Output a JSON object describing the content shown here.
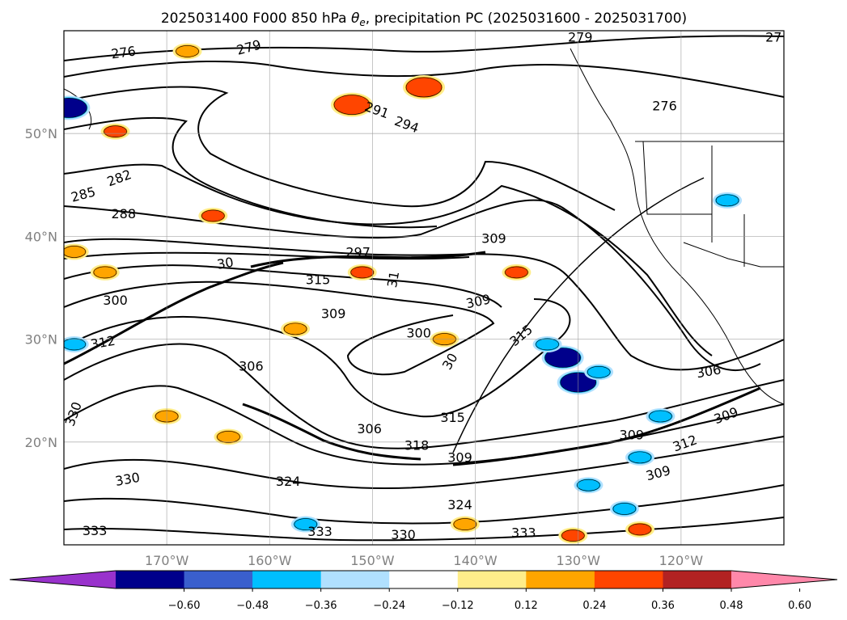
{
  "chart_data": {
    "type": "map-contour",
    "title_prefix": "2025031400 F000 850 hPa ",
    "title_symbol": "θ",
    "title_subscript": "e",
    "title_suffix": ", precipitation PC (2025031600 - 2025031700)",
    "lon_range": [
      -180,
      -110
    ],
    "lat_range": [
      10,
      60
    ],
    "lat_ticks": [
      {
        "value": 20,
        "label": "20°N"
      },
      {
        "value": 30,
        "label": "30°N"
      },
      {
        "value": 40,
        "label": "40°N"
      },
      {
        "value": 50,
        "label": "50°N"
      }
    ],
    "lon_ticks": [
      {
        "value": -170,
        "label": "170°W"
      },
      {
        "value": -160,
        "label": "160°W"
      },
      {
        "value": -150,
        "label": "150°W"
      },
      {
        "value": -140,
        "label": "140°W"
      },
      {
        "value": -130,
        "label": "130°W"
      },
      {
        "value": -120,
        "label": "120°W"
      }
    ],
    "grid": true,
    "contour_labels": [
      {
        "text": "276",
        "lon": -174.2,
        "lat": 57.8,
        "angle": -8
      },
      {
        "text": "279",
        "lon": -162.0,
        "lat": 58.3,
        "angle": -15
      },
      {
        "text": "279",
        "lon": -129.8,
        "lat": 59.3,
        "angle": 0
      },
      {
        "text": "276",
        "lon": -121.6,
        "lat": 52.6,
        "angle": 0
      },
      {
        "text": "27",
        "lon": -111.0,
        "lat": 59.3,
        "angle": 0
      },
      {
        "text": "291",
        "lon": -149.6,
        "lat": 52.2,
        "angle": 20
      },
      {
        "text": "294",
        "lon": -146.7,
        "lat": 50.8,
        "angle": 20
      },
      {
        "text": "282",
        "lon": -174.6,
        "lat": 45.6,
        "angle": -20
      },
      {
        "text": "285",
        "lon": -178.1,
        "lat": 44.0,
        "angle": -15
      },
      {
        "text": "288",
        "lon": -174.2,
        "lat": 42.1,
        "angle": 0
      },
      {
        "text": "297",
        "lon": -151.4,
        "lat": 38.4,
        "angle": 0
      },
      {
        "text": "309",
        "lon": -138.2,
        "lat": 39.7,
        "angle": 0
      },
      {
        "text": "30",
        "lon": -164.3,
        "lat": 37.3,
        "angle": -10
      },
      {
        "text": "315",
        "lon": -155.3,
        "lat": 35.7,
        "angle": 0
      },
      {
        "text": "31",
        "lon": -147.9,
        "lat": 35.8,
        "angle": -80
      },
      {
        "text": "300",
        "lon": -175.0,
        "lat": 33.7,
        "angle": 0
      },
      {
        "text": "309",
        "lon": -139.7,
        "lat": 33.6,
        "angle": -12
      },
      {
        "text": "309",
        "lon": -153.8,
        "lat": 32.4,
        "angle": 0
      },
      {
        "text": "300",
        "lon": -145.5,
        "lat": 30.5,
        "angle": 0
      },
      {
        "text": "315",
        "lon": -135.5,
        "lat": 30.3,
        "angle": -40
      },
      {
        "text": "312",
        "lon": -176.2,
        "lat": 29.6,
        "angle": -10
      },
      {
        "text": "30",
        "lon": -142.4,
        "lat": 27.8,
        "angle": -60
      },
      {
        "text": "306",
        "lon": -161.8,
        "lat": 27.3,
        "angle": 0
      },
      {
        "text": "306",
        "lon": -117.3,
        "lat": 26.8,
        "angle": -10
      },
      {
        "text": "315",
        "lon": -142.2,
        "lat": 22.3,
        "angle": 0
      },
      {
        "text": "306",
        "lon": -150.3,
        "lat": 21.2,
        "angle": 0
      },
      {
        "text": "309",
        "lon": -115.6,
        "lat": 22.5,
        "angle": -20
      },
      {
        "text": "309",
        "lon": -124.8,
        "lat": 20.6,
        "angle": 0
      },
      {
        "text": "318",
        "lon": -145.7,
        "lat": 19.6,
        "angle": 0
      },
      {
        "text": "312",
        "lon": -119.6,
        "lat": 19.8,
        "angle": -20
      },
      {
        "text": "309",
        "lon": -141.5,
        "lat": 18.4,
        "angle": 0
      },
      {
        "text": "309",
        "lon": -122.2,
        "lat": 16.9,
        "angle": -15
      },
      {
        "text": "330",
        "lon": -173.8,
        "lat": 16.3,
        "angle": -10
      },
      {
        "text": "324",
        "lon": -158.2,
        "lat": 16.1,
        "angle": 0
      },
      {
        "text": "324",
        "lon": -141.5,
        "lat": 13.8,
        "angle": 0
      },
      {
        "text": "333",
        "lon": -177.0,
        "lat": 11.3,
        "angle": 0
      },
      {
        "text": "333",
        "lon": -155.1,
        "lat": 11.2,
        "angle": 0
      },
      {
        "text": "330",
        "lon": -147.0,
        "lat": 10.9,
        "angle": 0
      },
      {
        "text": "333",
        "lon": -135.3,
        "lat": 11.1,
        "angle": 0
      },
      {
        "text": "330",
        "lon": -179.0,
        "lat": 22.7,
        "angle": -70
      }
    ],
    "colorbar": {
      "colors": [
        "#9932cc",
        "#00008b",
        "#3a5fcd",
        "#00bfff",
        "#b0e0ff",
        "#ffffff",
        "#ffed8a",
        "#ffa500",
        "#ff4500",
        "#b22222",
        "#ff88aa"
      ],
      "tick_labels": [
        "−0.60",
        "−0.48",
        "−0.36",
        "−0.24",
        "−0.12",
        "0.12",
        "0.24",
        "0.36",
        "0.48",
        "0.60"
      ],
      "extend": "both"
    },
    "precip_patches": [
      {
        "lon": -131.5,
        "lat": 28.2,
        "value": -0.5
      },
      {
        "lon": -130.0,
        "lat": 25.8,
        "value": -0.5
      },
      {
        "lon": -128.0,
        "lat": 26.8,
        "value": -0.35
      },
      {
        "lon": -133.0,
        "lat": 29.5,
        "value": -0.3
      },
      {
        "lon": -179.5,
        "lat": 52.5,
        "value": -0.6
      },
      {
        "lon": -175.0,
        "lat": 50.2,
        "value": 0.4
      },
      {
        "lon": -179.0,
        "lat": 38.5,
        "value": 0.35
      },
      {
        "lon": -176.0,
        "lat": 36.5,
        "value": 0.35
      },
      {
        "lon": -152.0,
        "lat": 52.8,
        "value": 0.45
      },
      {
        "lon": -145.0,
        "lat": 54.5,
        "value": 0.45
      },
      {
        "lon": -165.5,
        "lat": 42.0,
        "value": 0.4
      },
      {
        "lon": -151.0,
        "lat": 36.5,
        "value": 0.4
      },
      {
        "lon": -136.0,
        "lat": 36.5,
        "value": 0.4
      },
      {
        "lon": -122.0,
        "lat": 22.5,
        "value": -0.35
      },
      {
        "lon": -124.0,
        "lat": 18.5,
        "value": -0.35
      },
      {
        "lon": -129.0,
        "lat": 15.8,
        "value": -0.35
      },
      {
        "lon": -125.5,
        "lat": 13.5,
        "value": -0.3
      },
      {
        "lon": -124.0,
        "lat": 11.5,
        "value": 0.4
      },
      {
        "lon": -130.5,
        "lat": 10.9,
        "value": 0.4
      },
      {
        "lon": -179.0,
        "lat": 29.5,
        "value": -0.3
      },
      {
        "lon": -170.0,
        "lat": 22.5,
        "value": 0.3
      },
      {
        "lon": -164.0,
        "lat": 20.5,
        "value": 0.3
      },
      {
        "lon": -168.0,
        "lat": 58.0,
        "value": 0.3
      },
      {
        "lon": -143.0,
        "lat": 30.0,
        "value": 0.35
      },
      {
        "lon": -157.5,
        "lat": 31.0,
        "value": 0.3
      },
      {
        "lon": -115.5,
        "lat": 43.5,
        "value": -0.3
      },
      {
        "lon": -141.0,
        "lat": 12.0,
        "value": 0.3
      },
      {
        "lon": -156.5,
        "lat": 12.0,
        "value": -0.3
      }
    ]
  }
}
